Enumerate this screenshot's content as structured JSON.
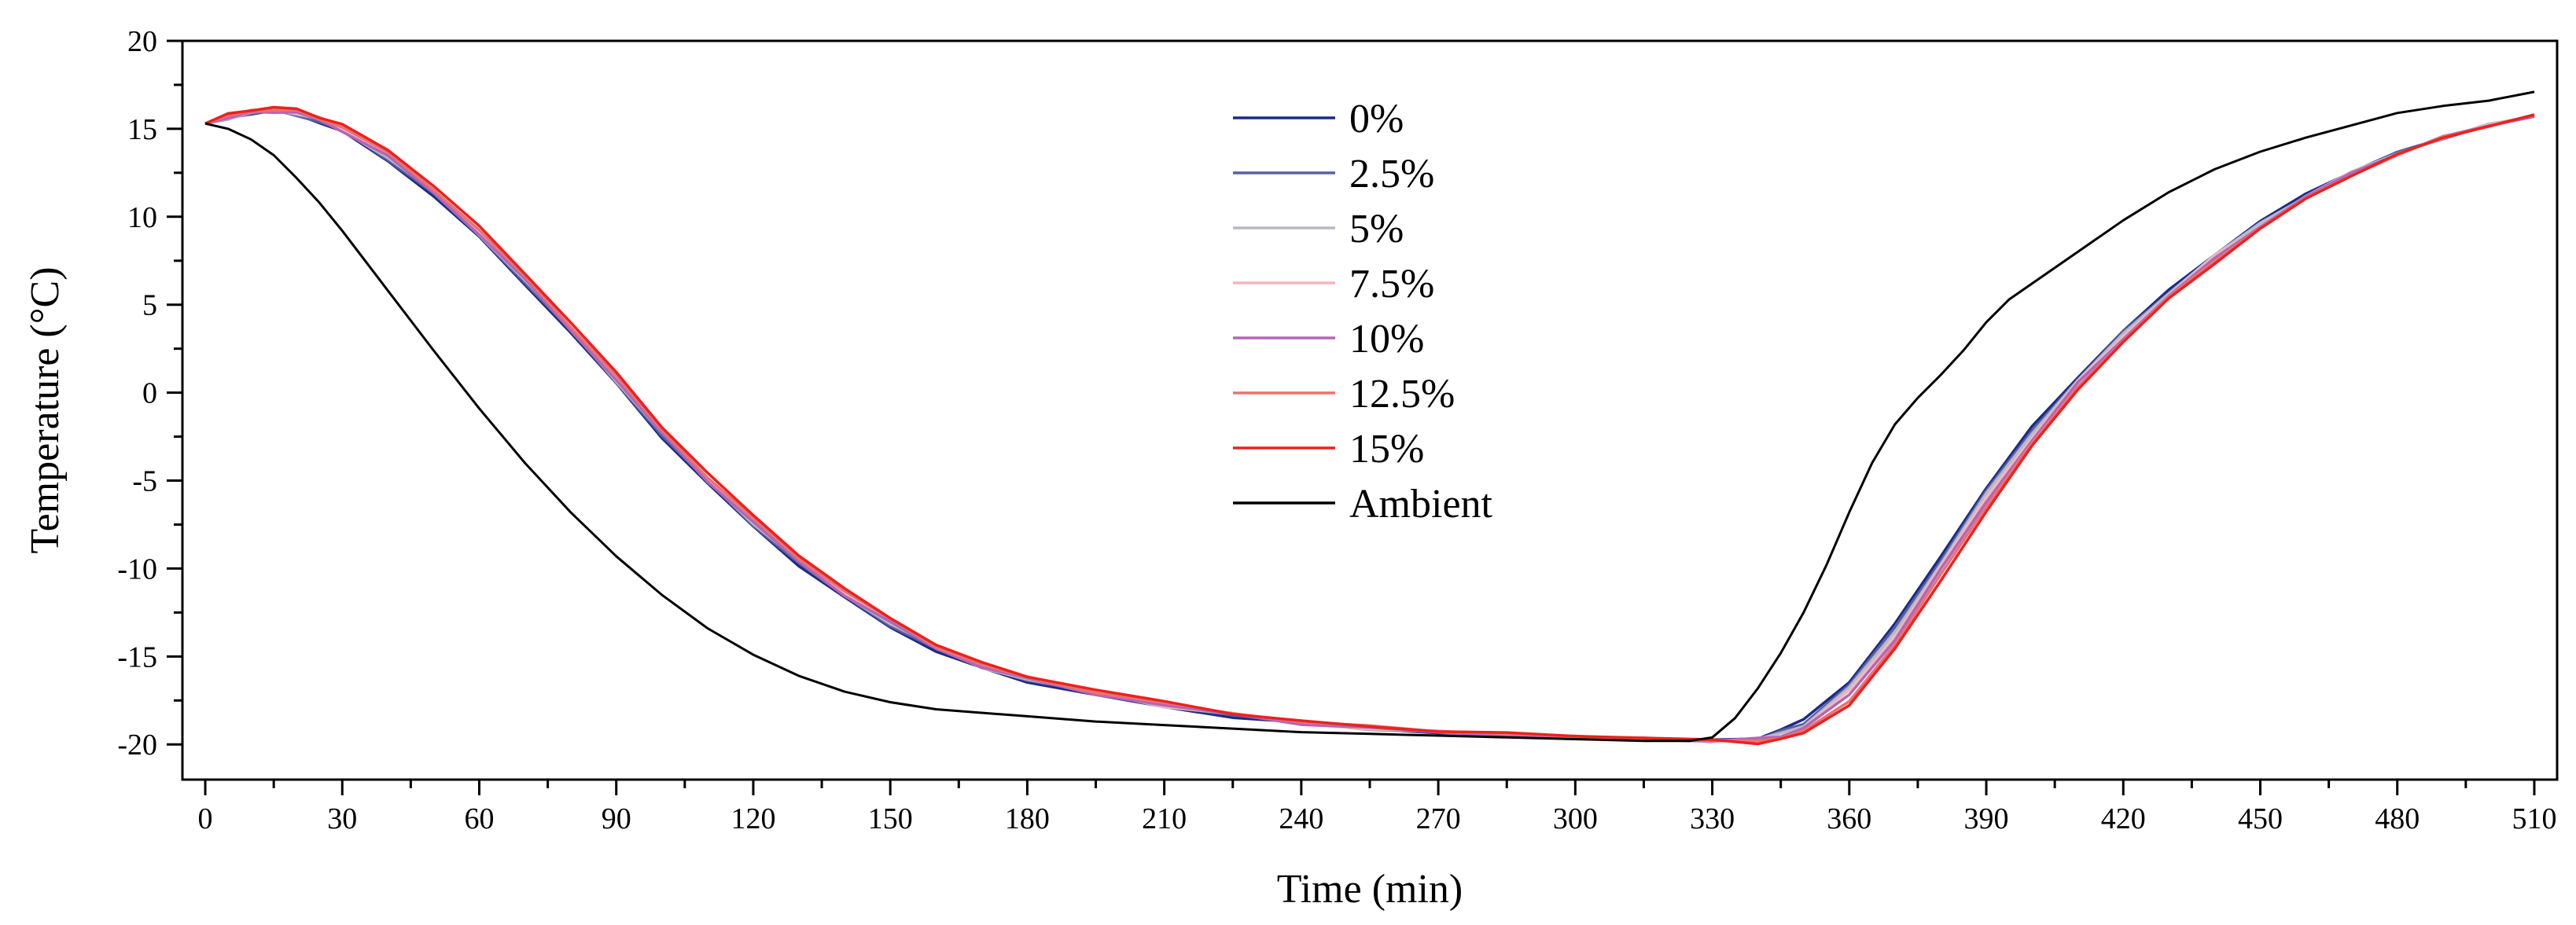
{
  "chart_data": {
    "type": "line",
    "title": "",
    "xlabel": "Time (min)",
    "ylabel": "Temperature (°C)",
    "xlim": [
      -5,
      515
    ],
    "ylim": [
      -22,
      20
    ],
    "x_ticks": [
      0,
      30,
      60,
      90,
      120,
      150,
      180,
      210,
      240,
      270,
      300,
      330,
      360,
      390,
      420,
      450,
      480,
      510
    ],
    "x_tick_labels": [
      "0",
      "30",
      "60",
      "90",
      "120",
      "150",
      "180",
      "210",
      "240",
      "270",
      "300",
      "330",
      "360",
      "390",
      "420",
      "450",
      "480",
      "510"
    ],
    "y_ticks": [
      20,
      15,
      10,
      5,
      0,
      -5,
      -10,
      -15,
      -20
    ],
    "y_tick_labels": [
      "20",
      "15",
      "10",
      "5",
      "0",
      "-5",
      "-10",
      "-15",
      "-20"
    ],
    "grid": false,
    "legend_position": "top-center",
    "series": [
      {
        "name": "0%",
        "color": "#1a2a8a",
        "x": [
          0,
          5,
          10,
          15,
          20,
          25,
          30,
          40,
          50,
          60,
          70,
          80,
          90,
          100,
          110,
          120,
          130,
          140,
          150,
          160,
          170,
          180,
          195,
          210,
          225,
          240,
          255,
          270,
          285,
          300,
          315,
          330,
          340,
          345,
          350,
          360,
          370,
          380,
          390,
          400,
          410,
          420,
          430,
          440,
          450,
          460,
          470,
          480,
          490,
          500,
          510
        ],
        "y": [
          15.3,
          15.6,
          15.9,
          16.0,
          15.8,
          15.4,
          14.8,
          13.2,
          11.2,
          8.8,
          6.2,
          3.4,
          0.5,
          -2.5,
          -5.2,
          -7.6,
          -9.8,
          -11.7,
          -13.3,
          -14.7,
          -15.7,
          -16.4,
          -17.2,
          -17.9,
          -18.4,
          -18.8,
          -19.1,
          -19.3,
          -19.5,
          -19.6,
          -19.7,
          -19.8,
          -19.6,
          -19.2,
          -18.6,
          -16.4,
          -13.2,
          -9.3,
          -5.4,
          -2.0,
          0.9,
          3.5,
          5.8,
          7.9,
          9.7,
          11.3,
          12.6,
          13.6,
          14.5,
          15.2,
          15.7
        ]
      },
      {
        "name": "2.5%",
        "color": "#5a5fa0",
        "x": [
          0,
          5,
          10,
          15,
          20,
          25,
          30,
          40,
          50,
          60,
          70,
          80,
          90,
          100,
          110,
          120,
          130,
          140,
          150,
          160,
          170,
          180,
          195,
          210,
          225,
          240,
          255,
          270,
          285,
          300,
          315,
          330,
          340,
          345,
          350,
          360,
          370,
          380,
          390,
          400,
          410,
          420,
          430,
          440,
          450,
          460,
          470,
          480,
          490,
          500,
          510
        ],
        "y": [
          15.3,
          15.6,
          15.9,
          16.0,
          15.8,
          15.4,
          14.9,
          13.3,
          11.3,
          8.9,
          6.3,
          3.5,
          0.6,
          -2.4,
          -5.1,
          -7.5,
          -9.7,
          -11.6,
          -13.2,
          -14.6,
          -15.6,
          -16.3,
          -17.1,
          -17.8,
          -18.3,
          -18.8,
          -19.1,
          -19.3,
          -19.5,
          -19.6,
          -19.7,
          -19.8,
          -19.7,
          -19.3,
          -18.8,
          -16.6,
          -13.4,
          -9.5,
          -5.6,
          -2.2,
          0.8,
          3.4,
          5.7,
          7.8,
          9.6,
          11.2,
          12.5,
          13.6,
          14.5,
          15.2,
          15.7
        ]
      },
      {
        "name": "5%",
        "color": "#b8b8c4",
        "x": [
          0,
          5,
          10,
          15,
          20,
          25,
          30,
          40,
          50,
          60,
          70,
          80,
          90,
          100,
          110,
          120,
          130,
          140,
          150,
          160,
          170,
          180,
          195,
          210,
          225,
          240,
          255,
          270,
          285,
          300,
          315,
          330,
          340,
          345,
          350,
          360,
          370,
          380,
          390,
          400,
          410,
          420,
          430,
          440,
          450,
          460,
          470,
          480,
          490,
          500,
          510
        ],
        "y": [
          15.3,
          15.6,
          15.9,
          16.0,
          15.9,
          15.5,
          14.9,
          13.4,
          11.4,
          9.0,
          6.4,
          3.6,
          0.7,
          -2.3,
          -5.0,
          -7.4,
          -9.6,
          -11.5,
          -13.1,
          -14.5,
          -15.6,
          -16.3,
          -17.1,
          -17.8,
          -18.3,
          -18.8,
          -19.1,
          -19.3,
          -19.5,
          -19.6,
          -19.7,
          -19.8,
          -19.7,
          -19.4,
          -18.9,
          -16.8,
          -13.6,
          -9.7,
          -5.8,
          -2.3,
          0.7,
          3.3,
          5.7,
          7.8,
          9.6,
          11.2,
          12.5,
          13.6,
          14.5,
          15.2,
          15.7
        ]
      },
      {
        "name": "7.5%",
        "color": "#f4b6be",
        "x": [
          0,
          5,
          10,
          15,
          20,
          25,
          30,
          40,
          50,
          60,
          70,
          80,
          90,
          100,
          110,
          120,
          130,
          140,
          150,
          160,
          170,
          180,
          195,
          210,
          225,
          240,
          255,
          270,
          285,
          300,
          315,
          330,
          340,
          345,
          350,
          360,
          370,
          380,
          390,
          400,
          410,
          420,
          430,
          440,
          450,
          460,
          470,
          480,
          490,
          500,
          510
        ],
        "y": [
          15.3,
          15.7,
          16.0,
          16.1,
          15.9,
          15.6,
          15.0,
          13.5,
          11.5,
          9.1,
          6.5,
          3.7,
          0.8,
          -2.2,
          -4.9,
          -7.3,
          -9.5,
          -11.4,
          -13.0,
          -14.5,
          -15.5,
          -16.2,
          -17.0,
          -17.8,
          -18.3,
          -18.8,
          -19.1,
          -19.3,
          -19.5,
          -19.6,
          -19.7,
          -19.8,
          -19.7,
          -19.5,
          -19.0,
          -17.0,
          -13.8,
          -9.9,
          -6.0,
          -2.5,
          0.6,
          3.2,
          5.6,
          7.7,
          9.5,
          11.2,
          12.5,
          13.6,
          14.5,
          15.2,
          15.7
        ]
      },
      {
        "name": "10%",
        "color": "#b565b5",
        "x": [
          0,
          5,
          10,
          15,
          20,
          25,
          30,
          40,
          50,
          60,
          70,
          80,
          90,
          100,
          110,
          120,
          130,
          140,
          150,
          160,
          170,
          180,
          195,
          210,
          225,
          240,
          255,
          270,
          285,
          300,
          315,
          330,
          340,
          345,
          350,
          360,
          370,
          380,
          390,
          400,
          410,
          420,
          430,
          440,
          450,
          460,
          470,
          480,
          490,
          500,
          510
        ],
        "y": [
          15.3,
          15.6,
          15.9,
          16.0,
          15.9,
          15.5,
          14.9,
          13.4,
          11.4,
          9.0,
          6.4,
          3.6,
          0.7,
          -2.3,
          -5.0,
          -7.4,
          -9.6,
          -11.5,
          -13.1,
          -14.5,
          -15.6,
          -16.3,
          -17.1,
          -17.8,
          -18.3,
          -18.8,
          -19.1,
          -19.3,
          -19.5,
          -19.6,
          -19.7,
          -19.8,
          -19.7,
          -19.5,
          -19.1,
          -17.2,
          -14.0,
          -10.1,
          -6.2,
          -2.7,
          0.5,
          3.1,
          5.5,
          7.6,
          9.5,
          11.1,
          12.5,
          13.6,
          14.5,
          15.2,
          15.7
        ]
      },
      {
        "name": "12.5%",
        "color": "#f0706e",
        "x": [
          0,
          5,
          10,
          15,
          20,
          25,
          30,
          40,
          50,
          60,
          70,
          80,
          90,
          100,
          110,
          120,
          130,
          140,
          150,
          160,
          170,
          180,
          195,
          210,
          225,
          240,
          255,
          270,
          285,
          300,
          315,
          330,
          340,
          345,
          350,
          360,
          370,
          380,
          390,
          400,
          410,
          420,
          430,
          440,
          450,
          460,
          470,
          480,
          490,
          500,
          510
        ],
        "y": [
          15.3,
          15.7,
          16.0,
          16.1,
          16.0,
          15.6,
          15.1,
          13.6,
          11.6,
          9.2,
          6.6,
          3.8,
          0.9,
          -2.1,
          -4.8,
          -7.2,
          -9.4,
          -11.3,
          -12.9,
          -14.4,
          -15.5,
          -16.2,
          -17.0,
          -17.7,
          -18.2,
          -18.7,
          -19.0,
          -19.2,
          -19.4,
          -19.6,
          -19.7,
          -19.8,
          -19.8,
          -19.6,
          -19.3,
          -17.5,
          -14.3,
          -10.4,
          -6.4,
          -2.9,
          0.3,
          3.0,
          5.4,
          7.5,
          9.4,
          11.0,
          12.4,
          13.5,
          14.5,
          15.2,
          15.8
        ]
      },
      {
        "name": "15%",
        "color": "#e8231f",
        "x": [
          0,
          5,
          10,
          15,
          20,
          25,
          30,
          40,
          50,
          60,
          70,
          80,
          90,
          100,
          110,
          120,
          130,
          140,
          150,
          160,
          170,
          180,
          195,
          210,
          225,
          240,
          255,
          270,
          285,
          300,
          315,
          330,
          340,
          345,
          350,
          360,
          370,
          380,
          390,
          400,
          410,
          420,
          430,
          440,
          450,
          460,
          470,
          480,
          490,
          500,
          510
        ],
        "y": [
          15.3,
          15.8,
          16.1,
          16.2,
          16.1,
          15.7,
          15.2,
          13.8,
          11.8,
          9.4,
          6.8,
          4.0,
          1.1,
          -1.9,
          -4.6,
          -7.0,
          -9.2,
          -11.2,
          -12.8,
          -14.3,
          -15.4,
          -16.1,
          -16.9,
          -17.6,
          -18.2,
          -18.7,
          -19.0,
          -19.2,
          -19.4,
          -19.5,
          -19.6,
          -19.8,
          -19.9,
          -19.7,
          -19.4,
          -17.7,
          -14.6,
          -10.7,
          -6.7,
          -3.1,
          0.2,
          2.9,
          5.3,
          7.4,
          9.3,
          11.0,
          12.4,
          13.5,
          14.5,
          15.2,
          15.8
        ]
      },
      {
        "name": "Ambient",
        "color": "#000000",
        "x": [
          0,
          5,
          10,
          15,
          20,
          25,
          30,
          40,
          50,
          60,
          70,
          80,
          90,
          100,
          110,
          120,
          130,
          140,
          150,
          160,
          170,
          180,
          195,
          210,
          225,
          240,
          255,
          270,
          285,
          300,
          315,
          325,
          330,
          335,
          340,
          345,
          350,
          355,
          360,
          365,
          370,
          375,
          380,
          385,
          390,
          395,
          400,
          410,
          420,
          430,
          440,
          450,
          460,
          470,
          480,
          490,
          500,
          510
        ],
        "y": [
          15.3,
          15.0,
          14.4,
          13.5,
          12.2,
          10.8,
          9.2,
          5.8,
          2.4,
          -0.9,
          -4.0,
          -6.8,
          -9.3,
          -11.5,
          -13.4,
          -14.9,
          -16.1,
          -17.0,
          -17.6,
          -18.0,
          -18.2,
          -18.4,
          -18.7,
          -18.9,
          -19.1,
          -19.3,
          -19.4,
          -19.5,
          -19.6,
          -19.7,
          -19.8,
          -19.8,
          -19.6,
          -18.5,
          -16.8,
          -14.8,
          -12.5,
          -9.8,
          -6.8,
          -4.0,
          -1.8,
          -0.3,
          1.0,
          2.4,
          4.0,
          5.3,
          6.2,
          8.0,
          9.8,
          11.4,
          12.7,
          13.7,
          14.5,
          15.2,
          15.9,
          16.3,
          16.6,
          17.1
        ]
      }
    ]
  }
}
